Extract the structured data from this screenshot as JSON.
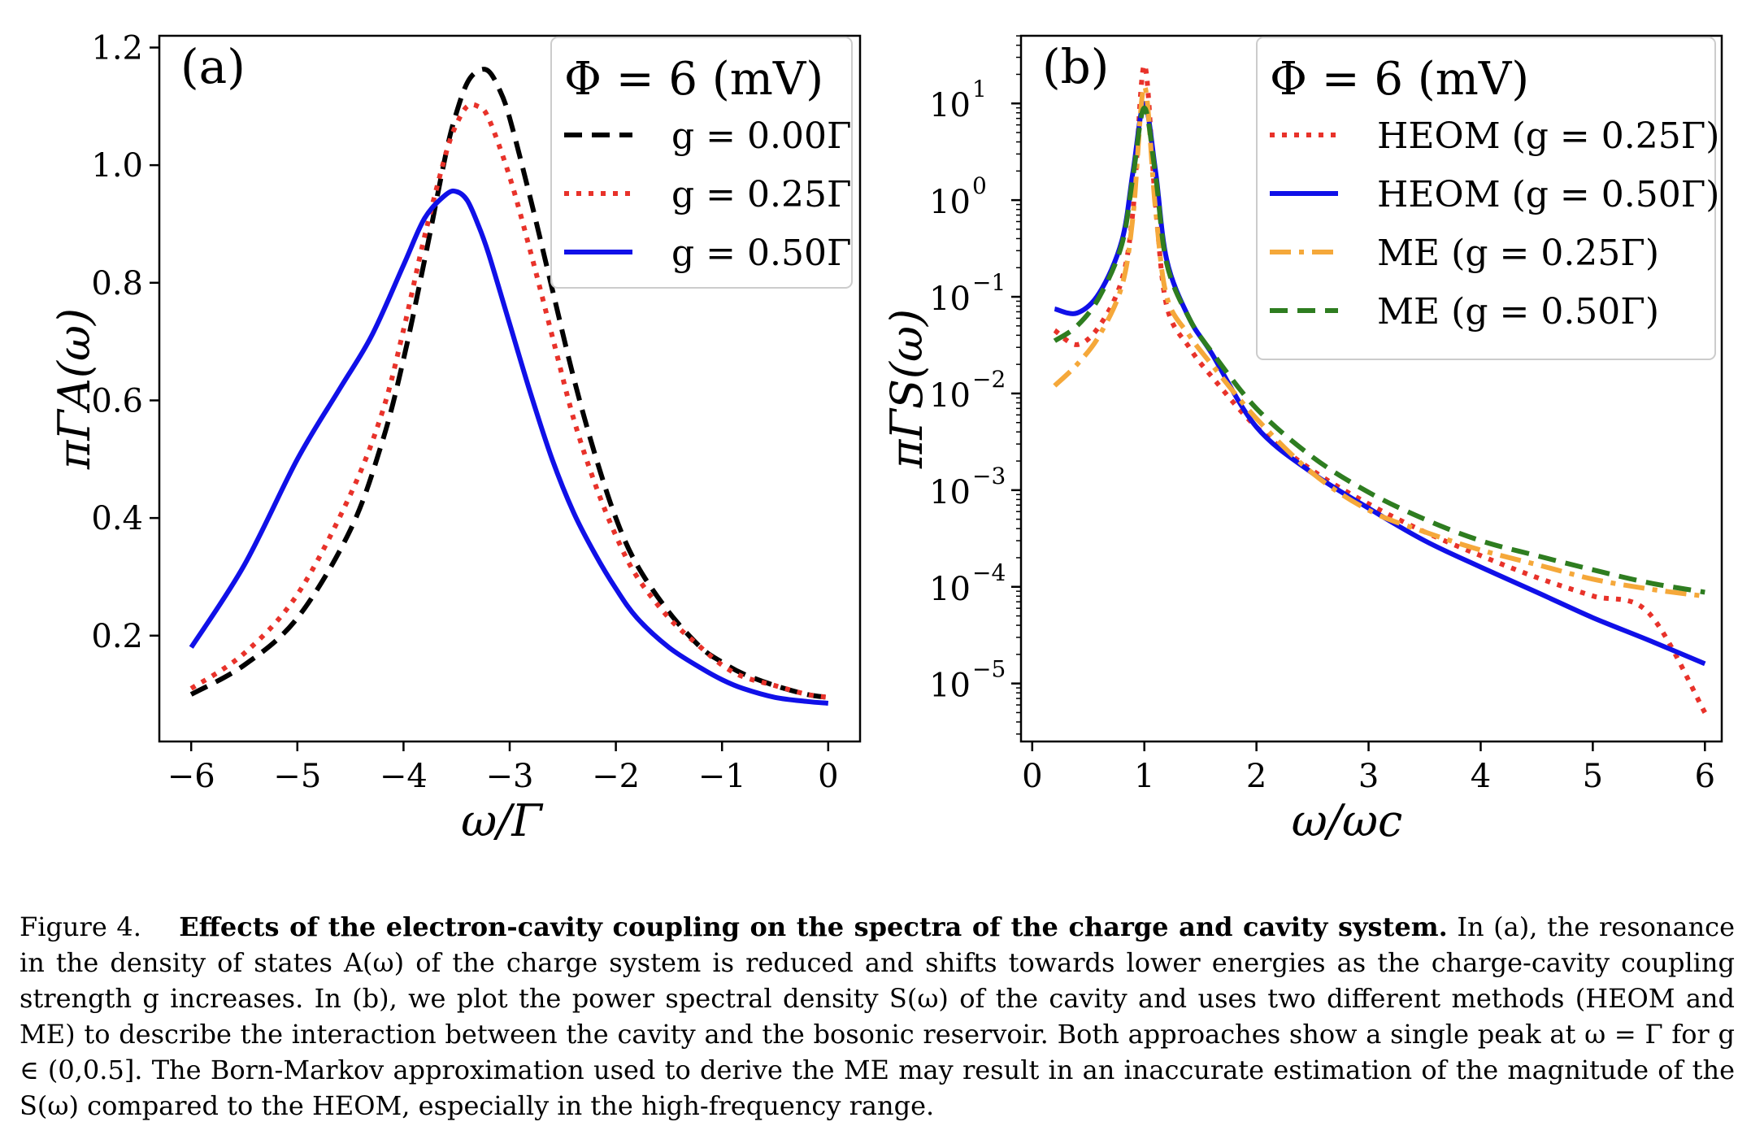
{
  "figure": {
    "caption": {
      "number": "Figure 4.",
      "title": "Effects of the electron-cavity coupling on the spectra of the charge and cavity system.",
      "body": "In (a), the resonance in the density of states A(ω) of the charge system is reduced and shifts towards lower energies as the charge-cavity coupling strength g increases. In (b), we plot the power spectral density S(ω) of the cavity and uses two different methods (HEOM and ME) to describe the interaction between the cavity and the bosonic reservoir. Both approaches show a single peak at ω = Γ for g ∈ (0,0.5]. The Born-Markov approximation used to derive the ME may result in an inaccurate estimation of the magnitude of the S(ω) compared to the HEOM, especially in the high-frequency range."
    }
  },
  "chart_data": [
    {
      "type": "line",
      "panel_label": "(a)",
      "xlabel": "ω/Γ",
      "ylabel": "πΓA(ω)",
      "xlim": [
        -6.3,
        0.3
      ],
      "ylim": [
        0.02,
        1.22
      ],
      "xticks": [
        -6,
        -5,
        -4,
        -3,
        -2,
        -1,
        0
      ],
      "xtick_labels": [
        "−6",
        "−5",
        "−4",
        "−3",
        "−2",
        "−1",
        "0"
      ],
      "yticks": [
        0.2,
        0.4,
        0.6,
        0.8,
        1.0,
        1.2
      ],
      "ytick_labels": [
        "0.2",
        "0.4",
        "0.6",
        "0.8",
        "1.0",
        "1.2"
      ],
      "legend": {
        "title": "Φ = 6 (mV)",
        "position": "top-right"
      },
      "grid": false,
      "series": [
        {
          "name": "g = 0.00Γ",
          "color": "#000000",
          "style": "dashed",
          "x": [
            -6.0,
            -5.5,
            -5.0,
            -4.5,
            -4.2,
            -4.0,
            -3.8,
            -3.6,
            -3.5,
            -3.4,
            -3.3,
            -3.2,
            -3.1,
            -3.0,
            -2.8,
            -2.6,
            -2.4,
            -2.2,
            -2.0,
            -1.8,
            -1.5,
            -1.2,
            -1.0,
            -0.8,
            -0.5,
            -0.2,
            0.0
          ],
          "y": [
            0.1,
            0.15,
            0.23,
            0.38,
            0.53,
            0.67,
            0.84,
            1.02,
            1.09,
            1.14,
            1.16,
            1.16,
            1.13,
            1.08,
            0.94,
            0.79,
            0.64,
            0.51,
            0.4,
            0.32,
            0.24,
            0.18,
            0.155,
            0.135,
            0.115,
            0.1,
            0.095
          ]
        },
        {
          "name": "g = 0.25Γ",
          "color": "#e8322a",
          "style": "dotted",
          "x": [
            -6.0,
            -5.5,
            -5.0,
            -4.5,
            -4.2,
            -4.0,
            -3.8,
            -3.6,
            -3.5,
            -3.4,
            -3.3,
            -3.2,
            -3.0,
            -2.8,
            -2.6,
            -2.4,
            -2.2,
            -2.0,
            -1.8,
            -1.5,
            -1.2,
            -1.0,
            -0.8,
            -0.5,
            -0.2,
            0.0
          ],
          "y": [
            0.11,
            0.17,
            0.27,
            0.44,
            0.58,
            0.72,
            0.88,
            1.02,
            1.07,
            1.1,
            1.1,
            1.08,
            0.98,
            0.85,
            0.71,
            0.57,
            0.46,
            0.37,
            0.3,
            0.23,
            0.18,
            0.15,
            0.13,
            0.115,
            0.1,
            0.095
          ]
        },
        {
          "name": "g = 0.50Γ",
          "color": "#1010e8",
          "style": "solid",
          "x": [
            -6.0,
            -5.5,
            -5.0,
            -4.6,
            -4.3,
            -4.0,
            -3.8,
            -3.6,
            -3.5,
            -3.4,
            -3.3,
            -3.2,
            -3.0,
            -2.8,
            -2.6,
            -2.4,
            -2.2,
            -2.0,
            -1.8,
            -1.5,
            -1.2,
            -1.0,
            -0.8,
            -0.5,
            -0.2,
            0.0
          ],
          "y": [
            0.18,
            0.32,
            0.5,
            0.62,
            0.71,
            0.83,
            0.91,
            0.95,
            0.955,
            0.94,
            0.9,
            0.85,
            0.73,
            0.61,
            0.5,
            0.41,
            0.34,
            0.28,
            0.23,
            0.18,
            0.145,
            0.125,
            0.11,
            0.095,
            0.088,
            0.085
          ]
        }
      ]
    },
    {
      "type": "line",
      "panel_label": "(b)",
      "xlabel": "ω/ωc",
      "ylabel": "πΓS(ω)",
      "xlim": [
        -0.1,
        6.15
      ],
      "ylim_log10": [
        -5.6,
        1.7
      ],
      "yscale": "log",
      "xticks": [
        0,
        1,
        2,
        3,
        4,
        5,
        6
      ],
      "xtick_labels": [
        "0",
        "1",
        "2",
        "3",
        "4",
        "5",
        "6"
      ],
      "yticks_log10": [
        -5,
        -4,
        -3,
        -2,
        -1,
        0,
        1
      ],
      "ytick_labels": [
        "10",
        "10",
        "10",
        "10",
        "10",
        "10",
        "10"
      ],
      "ytick_exponents": [
        "−5",
        "−4",
        "−3",
        "−2",
        "−1",
        "0",
        "1"
      ],
      "legend": {
        "title": "Φ = 6 (mV)",
        "position": "top-right"
      },
      "grid": false,
      "series": [
        {
          "name": "HEOM (g = 0.25Γ)",
          "color": "#e8322a",
          "style": "dotted",
          "x": [
            0.2,
            0.4,
            0.6,
            0.8,
            0.9,
            1.0,
            1.1,
            1.2,
            1.4,
            1.6,
            2.0,
            2.5,
            3.0,
            3.5,
            4.0,
            4.5,
            5.0,
            5.5,
            6.0
          ],
          "y": [
            0.045,
            0.032,
            0.05,
            0.15,
            0.8,
            25,
            0.9,
            0.08,
            0.03,
            0.015,
            0.0045,
            0.0016,
            0.00072,
            0.00037,
            0.00021,
            0.000125,
            8.05e-05,
            5.35e-05,
            5e-06
          ]
        },
        {
          "name": "HEOM (g = 0.50Γ)",
          "color": "#1010e8",
          "style": "solid",
          "x": [
            0.2,
            0.4,
            0.6,
            0.8,
            0.9,
            1.0,
            1.1,
            1.2,
            1.4,
            1.6,
            2.0,
            2.5,
            3.0,
            3.5,
            4.0,
            4.5,
            5.0,
            5.5,
            6.0
          ],
          "y": [
            0.075,
            0.068,
            0.11,
            0.38,
            2.0,
            10,
            2.0,
            0.24,
            0.06,
            0.026,
            0.0045,
            0.0015,
            0.00065,
            0.0003,
            0.00016,
            8.8e-05,
            4.8e-05,
            2.8e-05,
            1.6e-05
          ]
        },
        {
          "name": "ME (g = 0.25Γ)",
          "color": "#f5a83a",
          "style": "dashdot",
          "x": [
            0.2,
            0.4,
            0.6,
            0.8,
            0.9,
            1.0,
            1.1,
            1.2,
            1.4,
            1.6,
            2.0,
            2.5,
            3.0,
            3.5,
            4.0,
            4.5,
            5.0,
            5.5,
            6.0
          ],
          "y": [
            0.012,
            0.02,
            0.04,
            0.13,
            0.7,
            15,
            0.8,
            0.1,
            0.04,
            0.02,
            0.0055,
            0.0015,
            0.00062,
            0.00037,
            0.00024,
            0.00017,
            0.00012,
            9.5e-05,
            8e-05
          ]
        },
        {
          "name": "ME (g = 0.50Γ)",
          "color": "#2e7d20",
          "style": "dashed",
          "x": [
            0.2,
            0.4,
            0.6,
            0.8,
            0.9,
            1.0,
            1.1,
            1.2,
            1.4,
            1.6,
            2.0,
            2.5,
            3.0,
            3.5,
            4.0,
            4.5,
            5.0,
            5.5,
            6.0
          ],
          "y": [
            0.035,
            0.05,
            0.1,
            0.35,
            1.8,
            9,
            1.8,
            0.22,
            0.06,
            0.027,
            0.007,
            0.0022,
            0.00095,
            0.0005,
            0.0003,
            0.00021,
            0.00015,
            0.00011,
            8.8e-05
          ]
        }
      ]
    }
  ]
}
